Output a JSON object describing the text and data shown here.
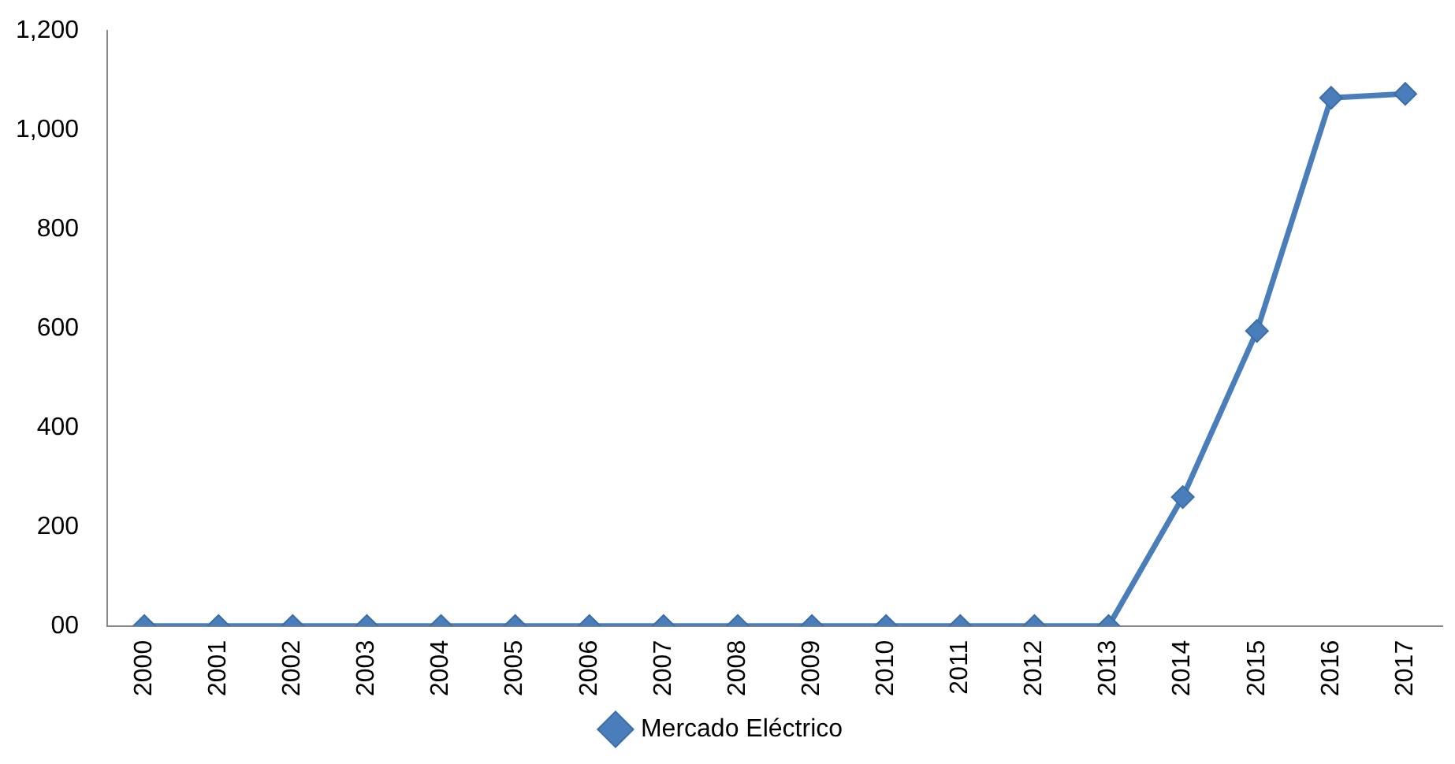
{
  "chart_data": {
    "type": "line",
    "categories": [
      "2000",
      "2001",
      "2002",
      "2003",
      "2004",
      "2005",
      "2006",
      "2007",
      "2008",
      "2009",
      "2010",
      "2011",
      "2012",
      "2013",
      "2014",
      "2015",
      "2016",
      "2017"
    ],
    "series": [
      {
        "name": "Mercado Eléctrico",
        "color": "#4a7ebb",
        "values": [
          0,
          0,
          0,
          0,
          0,
          0,
          0,
          0,
          0,
          0,
          0,
          0,
          0,
          0,
          260,
          595,
          1065,
          1073
        ]
      }
    ],
    "ylim": [
      0,
      1200
    ],
    "yticks": [
      {
        "value": 0,
        "label": "00"
      },
      {
        "value": 200,
        "label": "200"
      },
      {
        "value": 400,
        "label": "400"
      },
      {
        "value": 600,
        "label": "600"
      },
      {
        "value": 800,
        "label": "800"
      },
      {
        "value": 1000,
        "label": "1,000"
      },
      {
        "value": 1200,
        "label": "1,200"
      }
    ],
    "grid": false,
    "legend": "bottom",
    "marker": "diamond",
    "line_style": "solid"
  }
}
